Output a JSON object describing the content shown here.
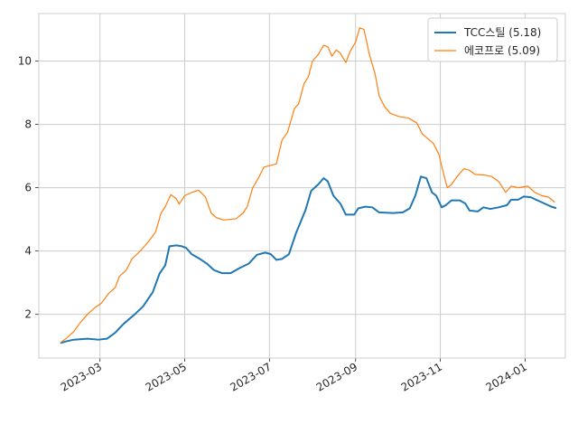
{
  "chart_data": {
    "type": "line",
    "title": "",
    "xlabel": "",
    "ylabel": "",
    "grid": true,
    "legend_position": "top-right",
    "xlim": [
      "2023-01-16",
      "2024-01-30"
    ],
    "ylim": [
      0.62,
      11.5
    ],
    "x_ticks": [
      "2023-03-01",
      "2023-05-01",
      "2023-07-01",
      "2023-09-01",
      "2023-11-01",
      "2024-01-01"
    ],
    "x_tick_labels": [
      "2023-03",
      "2023-05",
      "2023-07",
      "2023-09",
      "2023-11",
      "2024-01"
    ],
    "y_ticks": [
      2,
      4,
      6,
      8,
      10
    ],
    "y_tick_labels": [
      "2",
      "4",
      "6",
      "8",
      "10"
    ],
    "series": [
      {
        "name": "TCC스틸 (5.18)",
        "color": "#1f77b4",
        "linewidth": "thick",
        "points": [
          [
            "2023-02-01",
            1.1
          ],
          [
            "2023-02-05",
            1.15
          ],
          [
            "2023-02-10",
            1.2
          ],
          [
            "2023-02-20",
            1.23
          ],
          [
            "2023-02-28",
            1.2
          ],
          [
            "2023-03-06",
            1.23
          ],
          [
            "2023-03-12",
            1.42
          ],
          [
            "2023-03-18",
            1.7
          ],
          [
            "2023-03-26",
            2.0
          ],
          [
            "2023-04-01",
            2.25
          ],
          [
            "2023-04-08",
            2.7
          ],
          [
            "2023-04-13",
            3.3
          ],
          [
            "2023-04-17",
            3.55
          ],
          [
            "2023-04-20",
            4.15
          ],
          [
            "2023-04-25",
            4.18
          ],
          [
            "2023-04-29",
            4.15
          ],
          [
            "2023-05-02",
            4.1
          ],
          [
            "2023-05-06",
            3.9
          ],
          [
            "2023-05-12",
            3.75
          ],
          [
            "2023-05-17",
            3.6
          ],
          [
            "2023-05-22",
            3.4
          ],
          [
            "2023-05-28",
            3.3
          ],
          [
            "2023-06-03",
            3.3
          ],
          [
            "2023-06-09",
            3.45
          ],
          [
            "2023-06-16",
            3.6
          ],
          [
            "2023-06-22",
            3.88
          ],
          [
            "2023-06-28",
            3.95
          ],
          [
            "2023-07-02",
            3.9
          ],
          [
            "2023-07-06",
            3.72
          ],
          [
            "2023-07-10",
            3.75
          ],
          [
            "2023-07-15",
            3.9
          ],
          [
            "2023-07-20",
            4.55
          ],
          [
            "2023-07-27",
            5.3
          ],
          [
            "2023-07-31",
            5.9
          ],
          [
            "2023-08-05",
            6.1
          ],
          [
            "2023-08-09",
            6.3
          ],
          [
            "2023-08-12",
            6.2
          ],
          [
            "2023-08-16",
            5.75
          ],
          [
            "2023-08-21",
            5.5
          ],
          [
            "2023-08-25",
            5.15
          ],
          [
            "2023-08-31",
            5.15
          ],
          [
            "2023-09-03",
            5.35
          ],
          [
            "2023-09-08",
            5.4
          ],
          [
            "2023-09-13",
            5.38
          ],
          [
            "2023-09-18",
            5.22
          ],
          [
            "2023-09-28",
            5.2
          ],
          [
            "2023-10-05",
            5.22
          ],
          [
            "2023-10-10",
            5.35
          ],
          [
            "2023-10-14",
            5.75
          ],
          [
            "2023-10-18",
            6.35
          ],
          [
            "2023-10-22",
            6.3
          ],
          [
            "2023-10-26",
            5.85
          ],
          [
            "2023-10-29",
            5.75
          ],
          [
            "2023-11-02",
            5.38
          ],
          [
            "2023-11-05",
            5.45
          ],
          [
            "2023-11-09",
            5.6
          ],
          [
            "2023-11-15",
            5.6
          ],
          [
            "2023-11-19",
            5.5
          ],
          [
            "2023-11-22",
            5.28
          ],
          [
            "2023-11-28",
            5.25
          ],
          [
            "2023-12-02",
            5.38
          ],
          [
            "2023-12-07",
            5.33
          ],
          [
            "2023-12-13",
            5.38
          ],
          [
            "2023-12-19",
            5.45
          ],
          [
            "2023-12-22",
            5.62
          ],
          [
            "2023-12-27",
            5.62
          ],
          [
            "2023-12-31",
            5.72
          ],
          [
            "2024-01-05",
            5.7
          ],
          [
            "2024-01-10",
            5.6
          ],
          [
            "2024-01-15",
            5.5
          ],
          [
            "2024-01-20",
            5.4
          ],
          [
            "2024-01-23",
            5.36
          ]
        ]
      },
      {
        "name": "에코프로 (5.09)",
        "color": "#ff7f0e",
        "linewidth": "thin",
        "points": [
          [
            "2023-02-01",
            1.12
          ],
          [
            "2023-02-05",
            1.25
          ],
          [
            "2023-02-10",
            1.45
          ],
          [
            "2023-02-15",
            1.75
          ],
          [
            "2023-02-20",
            2.0
          ],
          [
            "2023-02-25",
            2.2
          ],
          [
            "2023-03-02",
            2.35
          ],
          [
            "2023-03-07",
            2.65
          ],
          [
            "2023-03-12",
            2.85
          ],
          [
            "2023-03-15",
            3.2
          ],
          [
            "2023-03-20",
            3.4
          ],
          [
            "2023-03-24",
            3.75
          ],
          [
            "2023-03-30",
            4.0
          ],
          [
            "2023-04-05",
            4.3
          ],
          [
            "2023-04-10",
            4.6
          ],
          [
            "2023-04-14",
            5.2
          ],
          [
            "2023-04-17",
            5.4
          ],
          [
            "2023-04-21",
            5.78
          ],
          [
            "2023-04-25",
            5.65
          ],
          [
            "2023-04-27",
            5.48
          ],
          [
            "2023-05-01",
            5.75
          ],
          [
            "2023-05-06",
            5.85
          ],
          [
            "2023-05-11",
            5.92
          ],
          [
            "2023-05-16",
            5.7
          ],
          [
            "2023-05-20",
            5.2
          ],
          [
            "2023-05-24",
            5.05
          ],
          [
            "2023-05-29",
            4.98
          ],
          [
            "2023-06-07",
            5.02
          ],
          [
            "2023-06-12",
            5.2
          ],
          [
            "2023-06-15",
            5.4
          ],
          [
            "2023-06-19",
            6.0
          ],
          [
            "2023-06-23",
            6.3
          ],
          [
            "2023-06-27",
            6.65
          ],
          [
            "2023-07-06",
            6.75
          ],
          [
            "2023-07-10",
            7.5
          ],
          [
            "2023-07-14",
            7.75
          ],
          [
            "2023-07-19",
            8.5
          ],
          [
            "2023-07-22",
            8.65
          ],
          [
            "2023-07-26",
            9.3
          ],
          [
            "2023-07-29",
            9.5
          ],
          [
            "2023-08-01",
            10.0
          ],
          [
            "2023-08-05",
            10.2
          ],
          [
            "2023-08-09",
            10.5
          ],
          [
            "2023-08-12",
            10.45
          ],
          [
            "2023-08-15",
            10.15
          ],
          [
            "2023-08-18",
            10.35
          ],
          [
            "2023-08-21",
            10.25
          ],
          [
            "2023-08-25",
            9.95
          ],
          [
            "2023-08-28",
            10.3
          ],
          [
            "2023-09-01",
            10.6
          ],
          [
            "2023-09-04",
            11.05
          ],
          [
            "2023-09-07",
            11.0
          ],
          [
            "2023-09-11",
            10.2
          ],
          [
            "2023-09-15",
            9.6
          ],
          [
            "2023-09-18",
            8.9
          ],
          [
            "2023-09-22",
            8.55
          ],
          [
            "2023-09-26",
            8.35
          ],
          [
            "2023-10-02",
            8.25
          ],
          [
            "2023-10-09",
            8.2
          ],
          [
            "2023-10-15",
            8.05
          ],
          [
            "2023-10-19",
            7.7
          ],
          [
            "2023-10-23",
            7.55
          ],
          [
            "2023-10-27",
            7.4
          ],
          [
            "2023-10-31",
            7.05
          ],
          [
            "2023-11-03",
            6.5
          ],
          [
            "2023-11-06",
            6.0
          ],
          [
            "2023-11-09",
            6.1
          ],
          [
            "2023-11-13",
            6.35
          ],
          [
            "2023-11-18",
            6.6
          ],
          [
            "2023-11-22",
            6.55
          ],
          [
            "2023-11-26",
            6.42
          ],
          [
            "2023-12-03",
            6.4
          ],
          [
            "2023-12-08",
            6.35
          ],
          [
            "2023-12-13",
            6.2
          ],
          [
            "2023-12-18",
            5.85
          ],
          [
            "2023-12-22",
            6.05
          ],
          [
            "2023-12-27",
            6.0
          ],
          [
            "2024-01-03",
            6.05
          ],
          [
            "2024-01-08",
            5.85
          ],
          [
            "2024-01-13",
            5.75
          ],
          [
            "2024-01-18",
            5.7
          ],
          [
            "2024-01-22",
            5.55
          ]
        ]
      }
    ]
  }
}
